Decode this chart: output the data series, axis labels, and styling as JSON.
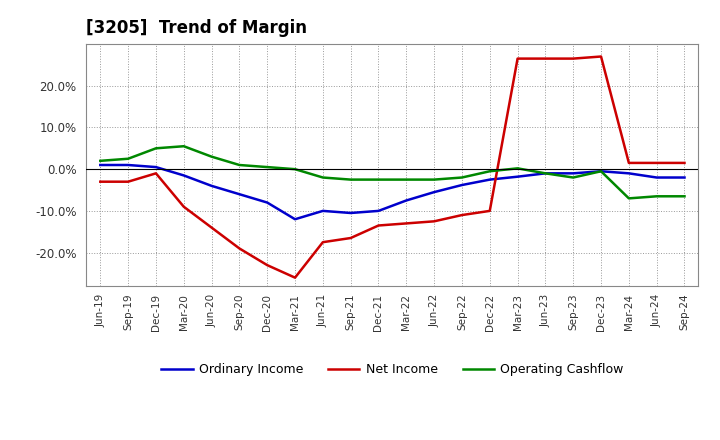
{
  "title": "[3205]  Trend of Margin",
  "x_labels": [
    "Jun-19",
    "Sep-19",
    "Dec-19",
    "Mar-20",
    "Jun-20",
    "Sep-20",
    "Dec-20",
    "Mar-21",
    "Jun-21",
    "Sep-21",
    "Dec-21",
    "Mar-22",
    "Jun-22",
    "Sep-22",
    "Dec-22",
    "Mar-23",
    "Jun-23",
    "Sep-23",
    "Dec-23",
    "Mar-24",
    "Jun-24",
    "Sep-24"
  ],
  "ordinary_income": [
    0.01,
    0.01,
    0.005,
    -0.015,
    -0.04,
    -0.06,
    -0.08,
    -0.12,
    -0.1,
    -0.105,
    -0.1,
    -0.075,
    -0.055,
    -0.038,
    -0.025,
    -0.018,
    -0.01,
    -0.01,
    -0.005,
    -0.01,
    -0.02,
    -0.02
  ],
  "net_income": [
    -0.03,
    -0.03,
    -0.01,
    -0.09,
    -0.14,
    -0.19,
    -0.23,
    -0.26,
    -0.175,
    -0.165,
    -0.135,
    -0.13,
    -0.125,
    -0.11,
    -0.1,
    0.265,
    0.265,
    0.265,
    0.27,
    0.015,
    0.015,
    0.015
  ],
  "operating_cashflow": [
    0.02,
    0.025,
    0.05,
    0.055,
    0.03,
    0.01,
    0.005,
    0.0,
    -0.02,
    -0.025,
    -0.025,
    -0.025,
    -0.025,
    -0.02,
    -0.005,
    0.002,
    -0.01,
    -0.02,
    -0.005,
    -0.07,
    -0.065,
    -0.065
  ],
  "ylim": [
    -0.28,
    0.3
  ],
  "yticks": [
    -0.2,
    -0.1,
    0.0,
    0.1,
    0.2
  ],
  "line_colors": {
    "ordinary_income": "#0000cc",
    "net_income": "#cc0000",
    "operating_cashflow": "#008800"
  },
  "line_width": 1.8,
  "background_color": "#ffffff",
  "grid_color": "#999999",
  "legend_labels": [
    "Ordinary Income",
    "Net Income",
    "Operating Cashflow"
  ]
}
